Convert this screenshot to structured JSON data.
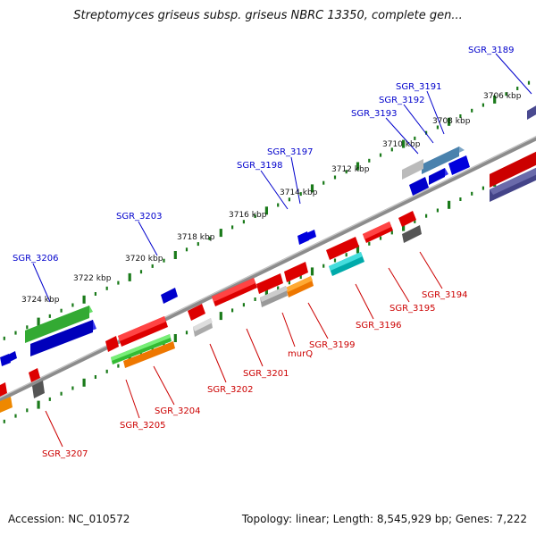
{
  "title": "Streptomyces griseus subsp. griseus NBRC 13350, complete gen...",
  "footer": {
    "accession": "Accession: NC_010572",
    "summary": "Topology: linear; Length: 8,545,929 bp; Genes: 7,222"
  },
  "colors": {
    "backbone": "#888888",
    "tick": "#1a7a1a",
    "forward_label": "#0000cc",
    "reverse_label": "#cc0000"
  },
  "scale_labels": [
    "3706 kbp",
    "3708 kbp",
    "3710 kbp",
    "3712 kbp",
    "3714 kbp",
    "3716 kbp",
    "3718 kbp",
    "3720 kbp",
    "3722 kbp",
    "3724 kbp"
  ],
  "forward_gene_labels": [
    "SGR_3189",
    "SGR_3191",
    "SGR_3192",
    "SGR_3193",
    "SGR_3197",
    "SGR_3198",
    "SGR_3203",
    "SGR_3206"
  ],
  "reverse_gene_labels": [
    "SGR_3194",
    "SGR_3195",
    "SGR_3196",
    "SGR_3199",
    "murQ",
    "SGR_3201",
    "SGR_3202",
    "SGR_3204",
    "SGR_3205",
    "SGR_3207"
  ]
}
